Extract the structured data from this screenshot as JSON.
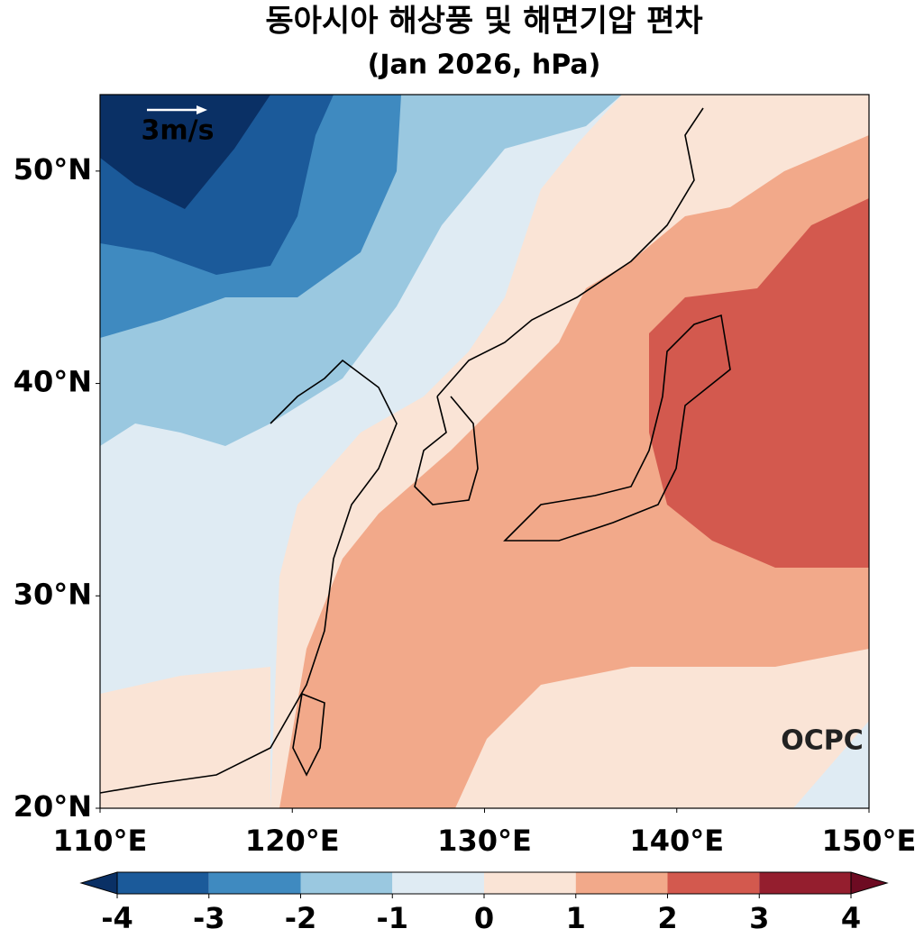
{
  "chart_data": {
    "type": "contour-map",
    "title": "동아시아 해상풍 및 해면기압 편차",
    "subtitle": "(Jan 2026, hPa)",
    "xlim": [
      110,
      150
    ],
    "ylim": [
      20,
      53.6
    ],
    "xticks": [
      {
        "value": 110,
        "label": "110°E"
      },
      {
        "value": 120,
        "label": "120°E"
      },
      {
        "value": 130,
        "label": "130°E"
      },
      {
        "value": 140,
        "label": "140°E"
      },
      {
        "value": 150,
        "label": "150°E"
      }
    ],
    "yticks": [
      {
        "value": 20,
        "label": "20°N"
      },
      {
        "value": 30,
        "label": "30°N"
      },
      {
        "value": 40,
        "label": "40°N"
      },
      {
        "value": 50,
        "label": "50°N"
      }
    ],
    "colorbar": {
      "ticks": [
        -4,
        -3,
        -2,
        -1,
        0,
        1,
        2,
        3,
        4
      ],
      "colors": [
        "#1b5a9a",
        "#3f8ac0",
        "#9ac8e0",
        "#dfebf3",
        "#fae4d6",
        "#f2a98a",
        "#d3594e",
        "#941e2e"
      ],
      "under_color": "#0a3065",
      "over_color": "#6d0b22"
    },
    "vector_key": "3m/s",
    "watermark": "OCPC"
  }
}
